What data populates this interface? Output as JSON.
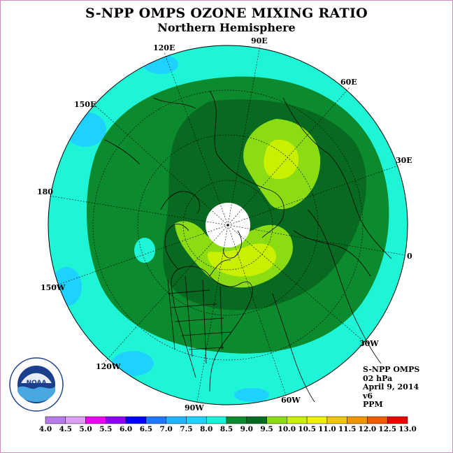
{
  "title": "S-NPP OMPS OZONE MIXING RATIO",
  "subtitle": "Northern Hemisphere",
  "longitude_labels": {
    "e90": "90E",
    "e120": "120E",
    "e60": "60E",
    "e150": "150E",
    "e30": "30E",
    "d180": "180",
    "d0": "0",
    "w150": "150W",
    "w30": "30W",
    "w120": "120W",
    "w60": "60W",
    "w90": "90W"
  },
  "info": {
    "instrument": "S-NPP OMPS",
    "level": "02 hPa",
    "date": "April 9, 2014",
    "version": "v6",
    "units": "PPM"
  },
  "colorbar": {
    "ticks": [
      "4.0",
      "4.5",
      "5.0",
      "5.5",
      "6.0",
      "6.5",
      "7.0",
      "7.5",
      "8.0",
      "8.5",
      "9.0",
      "9.5",
      "10.0",
      "10.5",
      "11.0",
      "11.5",
      "12.0",
      "12.5",
      "13.0"
    ],
    "colors": [
      "#b87ae8",
      "#dca0f8",
      "#f000f0",
      "#8c00ff",
      "#0000ff",
      "#1e78ff",
      "#1eb4ff",
      "#1ed2ff",
      "#14f5d7",
      "#0b8a2e",
      "#076a20",
      "#8cdc14",
      "#c8f000",
      "#f0f000",
      "#f0c800",
      "#f09600",
      "#f05a00",
      "#f00000",
      "#8b4513"
    ]
  },
  "map_colors": {
    "c75_8": "#1ef5d7",
    "c8_85": "#0b8a2e",
    "c85_9": "#076a20",
    "c9_95": "#8cdc14",
    "c95_10": "#c8f000",
    "nodata": "#ffffff"
  },
  "logo_text": "NOAA",
  "logo_ring_text": "NATIONAL OCEANIC AND ATMOSPHERIC ADMINISTRATION · U.S. DEPARTMENT OF COMMERCE"
}
